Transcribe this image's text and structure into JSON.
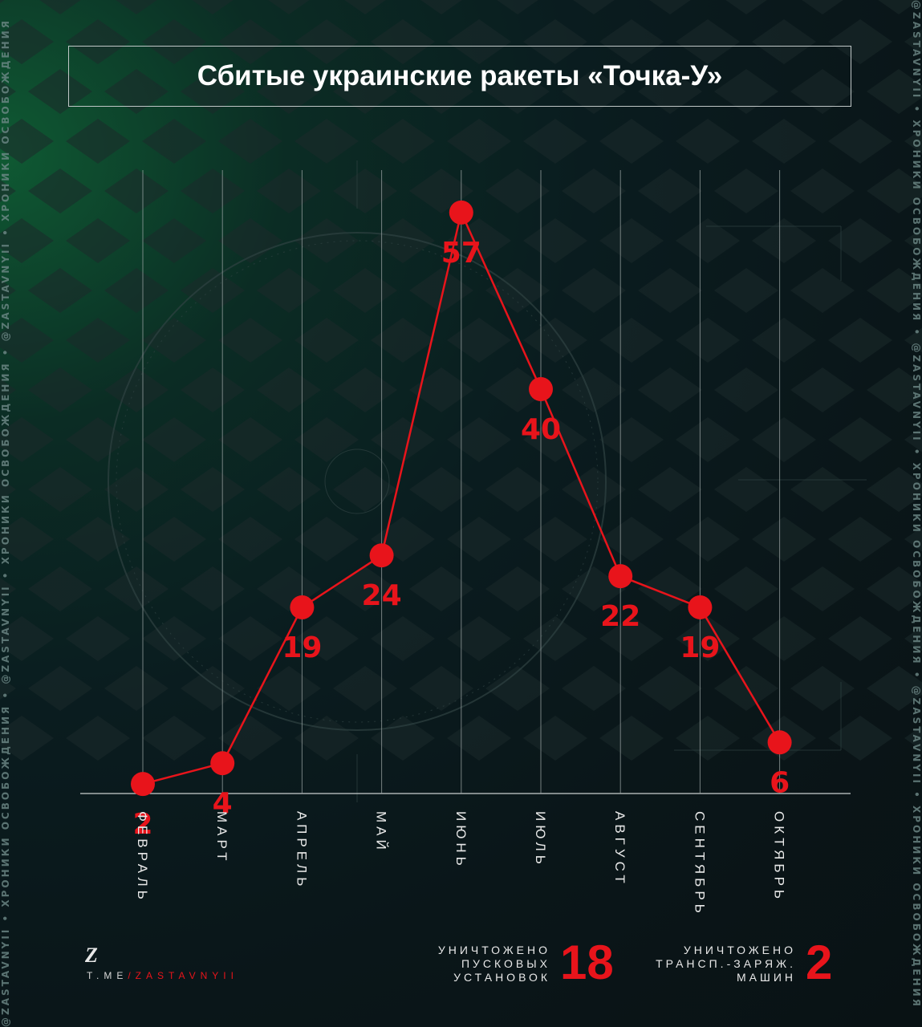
{
  "title": "Сбитые украинские ракеты «Точка-У»",
  "side_text": "@ZASTAVNYII • ХРОНИКИ ОСВОБОЖДЕНИЯ • @ZASTAVNYII • ХРОНИКИ ОСВОБОЖДЕНИЯ • @ZASTAVNYII • ХРОНИКИ ОСВОБОЖДЕНИЯ",
  "colors": {
    "accent": "#e8141b",
    "text": "#ffffff",
    "grid": "#9aa3a3"
  },
  "chart_data": {
    "type": "line",
    "categories": [
      "ФЕВРАЛЬ",
      "МАРТ",
      "АПРЕЛЬ",
      "МАЙ",
      "ИЮНЬ",
      "ИЮЛЬ",
      "АВГУСТ",
      "СЕНТЯБРЬ",
      "ОКТЯБРЬ"
    ],
    "values": [
      2,
      4,
      19,
      24,
      57,
      40,
      22,
      19,
      6
    ],
    "ylim": [
      0,
      60
    ],
    "grid": true,
    "title": "Сбитые украинские ракеты «Точка-У»"
  },
  "footer": {
    "logo": "Z",
    "link_prefix": "T.ME",
    "link_suffix": "/ZASTAVNYII"
  },
  "stats": [
    {
      "label": "УНИЧТОЖЕНО\nПУСКОВЫХ\nУСТАНОВОК",
      "value": "18"
    },
    {
      "label": "УНИЧТОЖЕНО\nТРАНСП.-ЗАРЯЖ.\nМАШИН",
      "value": "2"
    }
  ]
}
